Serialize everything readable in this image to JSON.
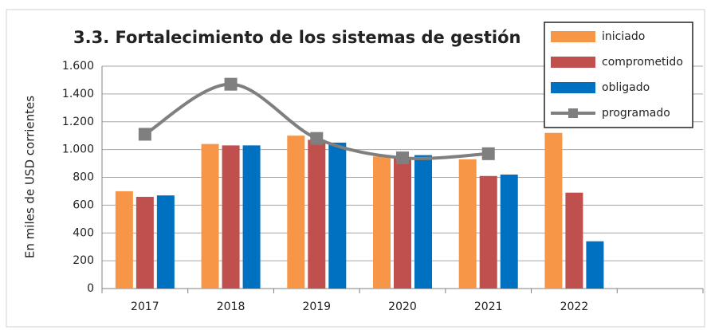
{
  "chart_data": {
    "type": "bar_line",
    "title": "3.3. Fortalecimiento de los sistemas de gestión",
    "y_label": "En miles de USD corrientes",
    "categories": [
      "2017",
      "2018",
      "2019",
      "2020",
      "2021",
      "2022",
      null
    ],
    "series": [
      {
        "name": "iniciado",
        "color": "#f79646",
        "type": "bar",
        "values": [
          700,
          1040,
          1100,
          950,
          930,
          1120,
          null
        ]
      },
      {
        "name": "comprometido",
        "color": "#c0504d",
        "type": "bar",
        "values": [
          660,
          1030,
          1070,
          940,
          810,
          690,
          null
        ]
      },
      {
        "name": "obligado",
        "color": "#0070c0",
        "type": "bar",
        "values": [
          670,
          1030,
          1050,
          960,
          820,
          340,
          null
        ]
      },
      {
        "name": "programado",
        "color": "#7f7f7f",
        "type": "line",
        "values": [
          1110,
          1470,
          1080,
          940,
          970,
          null,
          null
        ]
      }
    ],
    "ylim": [
      0,
      1600
    ],
    "yticks": [
      0,
      200,
      400,
      600,
      800,
      {
        "value": 1000,
        "label": "1.000"
      },
      {
        "value": 1200,
        "label": "1.200"
      },
      {
        "value": 1400,
        "label": "1.400"
      },
      {
        "value": 1600,
        "label": "1.600"
      }
    ],
    "grid": true,
    "legend": "top-right"
  }
}
